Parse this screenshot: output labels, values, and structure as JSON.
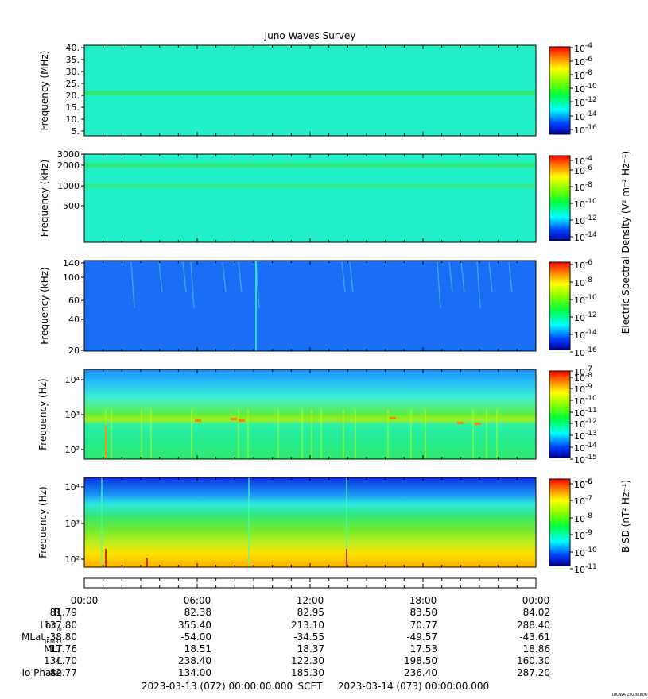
{
  "title": "Juno Waves Survey",
  "stamp": "UIOWA 20230806",
  "colorbar_label_e": "Electric Spectral Density (V² m⁻² Hz⁻¹)",
  "colorbar_label_b": "B SD (nT² Hz⁻¹)",
  "chart_data": [
    {
      "type": "heatmap",
      "ylabel": "Frequency (MHz)",
      "yticks": [
        "5.",
        "10.",
        "15.",
        "20.",
        "25.",
        "30.",
        "35.",
        "40."
      ],
      "ylim": [
        3.5,
        41
      ],
      "base_color": "#22f0c8",
      "bands": [
        {
          "freq": 21.5,
          "color": "#30e870"
        }
      ],
      "colorbar_ticks": [
        "-16",
        "-14",
        "-12",
        "-10",
        "-8",
        "-6",
        "-4"
      ],
      "colorbar_range": [
        -17,
        -4
      ]
    },
    {
      "type": "heatmap",
      "ylabel": "Frequency (kHz)",
      "yticks": [
        "500",
        "1000",
        "2000",
        "3000"
      ],
      "ylim": [
        100,
        3000
      ],
      "scale": "log",
      "base_color": "#22f0c8",
      "bands": [
        {
          "freq": 2000,
          "color": "#30e870"
        },
        {
          "freq": 1000,
          "color": "#35ea90"
        }
      ],
      "colorbar_ticks": [
        "-14",
        "-12",
        "-10",
        "-8",
        "-6",
        "-4"
      ],
      "colorbar_range": [
        -15,
        -3.5
      ]
    },
    {
      "type": "heatmap",
      "ylabel": "Frequency (kHz)",
      "yticks": [
        "20",
        "40",
        "60",
        "100",
        "140"
      ],
      "ylim": [
        20,
        140
      ],
      "scale": "log",
      "base_color": "#1a6ef5",
      "colorbar_ticks": [
        "-16",
        "-14",
        "-12",
        "-10",
        "-8",
        "-6"
      ],
      "colorbar_range": [
        -16,
        -6
      ]
    },
    {
      "type": "heatmap",
      "ylabel": "Frequency (Hz)",
      "yticks": [
        "10²",
        "10³",
        "10⁴"
      ],
      "ylim": [
        50,
        20000
      ],
      "scale": "log",
      "base_color": "#20d890",
      "colorbar_ticks": [
        "-15",
        "-14",
        "-13",
        "-12",
        "-11",
        "-10",
        "-9",
        "-8",
        "-7"
      ],
      "colorbar_range": [
        -15,
        -7
      ]
    },
    {
      "type": "heatmap",
      "ylabel": "Frequency (Hz)",
      "yticks": [
        "10²",
        "10³",
        "10⁴"
      ],
      "ylim": [
        50,
        20000
      ],
      "scale": "log",
      "base_color": "#40e060",
      "colorbar_ticks": [
        "-11",
        "-10",
        "-9",
        "-8",
        "-7",
        "-6",
        "-5"
      ],
      "colorbar_range": [
        -11,
        -4.5
      ]
    }
  ],
  "ephemeris": {
    "row_labels": [
      "R",
      "Lon",
      "MLat",
      "MLT",
      "L",
      "Io Phase"
    ],
    "row_subs": [
      "J",
      "III",
      "JRM33",
      "",
      "",
      ""
    ],
    "times": [
      "00:00",
      "06:00",
      "12:00",
      "18:00",
      "00:00"
    ],
    "rows": [
      [
        "81.79",
        "82.38",
        "82.95",
        "83.50",
        "84.02"
      ],
      [
        "137.80",
        "355.40",
        "213.10",
        "70.77",
        "288.40"
      ],
      [
        "-38.80",
        "-54.00",
        "-34.55",
        "-49.57",
        "-43.61"
      ],
      [
        "17.76",
        "18.51",
        "18.37",
        "17.53",
        "18.86"
      ],
      [
        "134.70",
        "238.40",
        "122.30",
        "198.50",
        "160.30"
      ],
      [
        "82.77",
        "134.00",
        "185.30",
        "236.40",
        "287.20"
      ]
    ],
    "start": "2023-03-13 (072) 00:00:00.000",
    "frame": "SCET",
    "end": "2023-03-14 (073) 00:00:00.000"
  }
}
